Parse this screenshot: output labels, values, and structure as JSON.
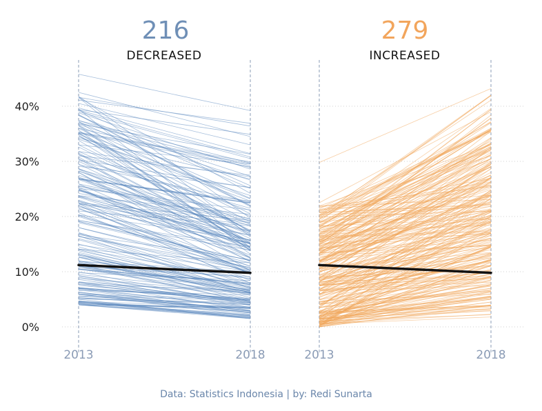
{
  "colors": {
    "decreased": "#5a86bd",
    "increased": "#f0a65a",
    "decreased_title": "#6f8fb6",
    "increased_title": "#f2a55c",
    "average": "#111111",
    "grid": "#cfcfcf",
    "tick": "#8a9bb5"
  },
  "footer": "Data: Statistics Indonesia | by: Redi Sunarta",
  "chart_data": [
    {
      "type": "line",
      "title": "216",
      "subtitle": "DECREASED",
      "x_categories": [
        "2013",
        "2018"
      ],
      "y_ticks": [
        "0%",
        "10%",
        "20%",
        "30%",
        "40%"
      ],
      "ylim": [
        0,
        45
      ],
      "series_count": 216,
      "average_line": {
        "y2013": 11.2,
        "y2018": 9.8
      },
      "sample_lines": [
        [
          45.8,
          39.2
        ],
        [
          42.5,
          34.5
        ],
        [
          40.5,
          33.0
        ],
        [
          39.0,
          30.5
        ],
        [
          38.5,
          22.0
        ],
        [
          36.0,
          20.5
        ],
        [
          35.0,
          19.0
        ],
        [
          33.0,
          17.5
        ],
        [
          30.0,
          16.0
        ],
        [
          29.5,
          15.0
        ],
        [
          27.0,
          14.0
        ],
        [
          25.0,
          13.0
        ],
        [
          23.0,
          12.5
        ],
        [
          22.0,
          11.0
        ],
        [
          20.0,
          10.5
        ],
        [
          18.0,
          10.0
        ],
        [
          17.0,
          9.0
        ],
        [
          16.0,
          8.0
        ],
        [
          15.0,
          7.5
        ],
        [
          14.0,
          6.5
        ],
        [
          13.0,
          6.0
        ],
        [
          12.0,
          5.0
        ],
        [
          11.0,
          4.5
        ],
        [
          10.0,
          4.0
        ],
        [
          9.0,
          3.5
        ],
        [
          8.0,
          3.0
        ],
        [
          7.0,
          2.5
        ],
        [
          6.0,
          2.0
        ],
        [
          5.0,
          1.5
        ],
        [
          4.5,
          1.5
        ]
      ]
    },
    {
      "type": "line",
      "title": "279",
      "subtitle": "INCREASED",
      "x_categories": [
        "2013",
        "2018"
      ],
      "y_ticks": [
        "0%",
        "10%",
        "20%",
        "30%",
        "40%"
      ],
      "ylim": [
        0,
        45
      ],
      "series_count": 279,
      "average_line": {
        "y2013": 11.2,
        "y2018": 9.8
      },
      "sample_lines": [
        [
          29.8,
          43.2
        ],
        [
          22.5,
          39.0
        ],
        [
          20.0,
          36.0
        ],
        [
          19.0,
          33.0
        ],
        [
          17.0,
          30.5
        ],
        [
          16.0,
          29.0
        ],
        [
          15.0,
          27.5
        ],
        [
          14.0,
          26.0
        ],
        [
          13.0,
          24.0
        ],
        [
          12.0,
          22.5
        ],
        [
          11.0,
          21.0
        ],
        [
          10.0,
          19.5
        ],
        [
          9.5,
          18.0
        ],
        [
          9.0,
          17.0
        ],
        [
          8.0,
          16.0
        ],
        [
          7.5,
          15.0
        ],
        [
          7.0,
          14.0
        ],
        [
          6.0,
          13.0
        ],
        [
          5.5,
          12.5
        ],
        [
          5.0,
          12.0
        ],
        [
          4.5,
          11.0
        ],
        [
          4.0,
          10.0
        ],
        [
          3.5,
          9.0
        ],
        [
          3.0,
          8.5
        ],
        [
          2.5,
          7.5
        ],
        [
          2.0,
          7.0
        ],
        [
          1.5,
          6.0
        ],
        [
          1.0,
          5.0
        ],
        [
          0.5,
          4.5
        ],
        [
          0.0,
          4.0
        ]
      ]
    }
  ]
}
